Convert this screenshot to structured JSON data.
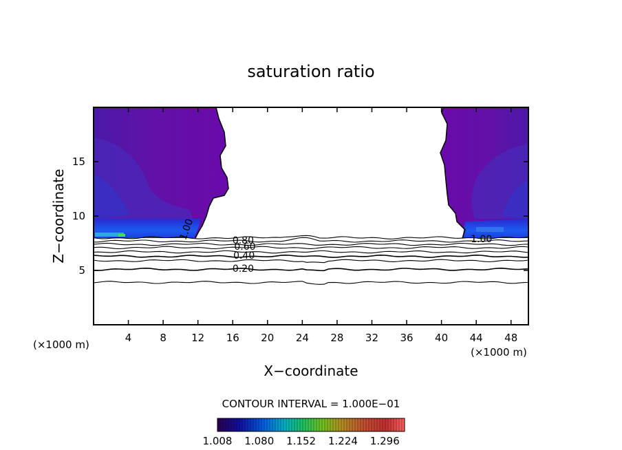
{
  "chart_data": {
    "type": "contour",
    "title": "saturation ratio",
    "xlabel": "X−coordinate",
    "ylabel": "Z−coordinate",
    "x_unit": "(×1000 m)",
    "z_unit": "(×1000 m)",
    "xlim": [
      0,
      50
    ],
    "ylim": [
      0,
      20
    ],
    "x_ticks": [
      4,
      8,
      12,
      16,
      20,
      24,
      28,
      32,
      36,
      40,
      44,
      48
    ],
    "y_ticks": [
      5,
      10,
      15
    ],
    "contour_interval_text": "CONTOUR INTERVAL = 1.000E−01",
    "contour_labels": [
      {
        "text": "0.80",
        "x": 17.2,
        "z": 7.8
      },
      {
        "text": "0.60",
        "x": 17.4,
        "z": 7.2
      },
      {
        "text": "0.40",
        "x": 17.3,
        "z": 6.4
      },
      {
        "text": "0.20",
        "x": 17.2,
        "z": 5.2
      },
      {
        "text": "1.00",
        "x": 11.0,
        "z": 9.0
      },
      {
        "text": "1.00",
        "x": 44.6,
        "z": 7.9
      }
    ],
    "contour_levels_z": [
      {
        "level": 0.9,
        "z": 8.0
      },
      {
        "level": 0.8,
        "z": 7.7
      },
      {
        "level": 0.7,
        "z": 7.4
      },
      {
        "level": 0.6,
        "z": 7.1
      },
      {
        "level": 0.5,
        "z": 6.7
      },
      {
        "level": 0.4,
        "z": 6.3
      },
      {
        "level": 0.3,
        "z": 5.9
      },
      {
        "level": 0.2,
        "z": 5.1
      },
      {
        "level": 0.1,
        "z": 3.9
      }
    ],
    "supersaturated_regions": [
      {
        "side": "left",
        "x_range": [
          0,
          15
        ],
        "z_range": [
          8.1,
          20
        ]
      },
      {
        "side": "right",
        "x_range": [
          40.5,
          50
        ],
        "z_range": [
          8.1,
          20
        ]
      }
    ],
    "colorbar": {
      "min": 1.008,
      "max": 1.33,
      "tick_labels": [
        "1.008",
        "1.080",
        "1.152",
        "1.224",
        "1.296"
      ],
      "colors": [
        "#3a006e",
        "#0000b4",
        "#0064e6",
        "#00c8c8",
        "#00c850",
        "#96c800",
        "#e6b400",
        "#e66400",
        "#c80000",
        "#ff5050"
      ]
    }
  }
}
